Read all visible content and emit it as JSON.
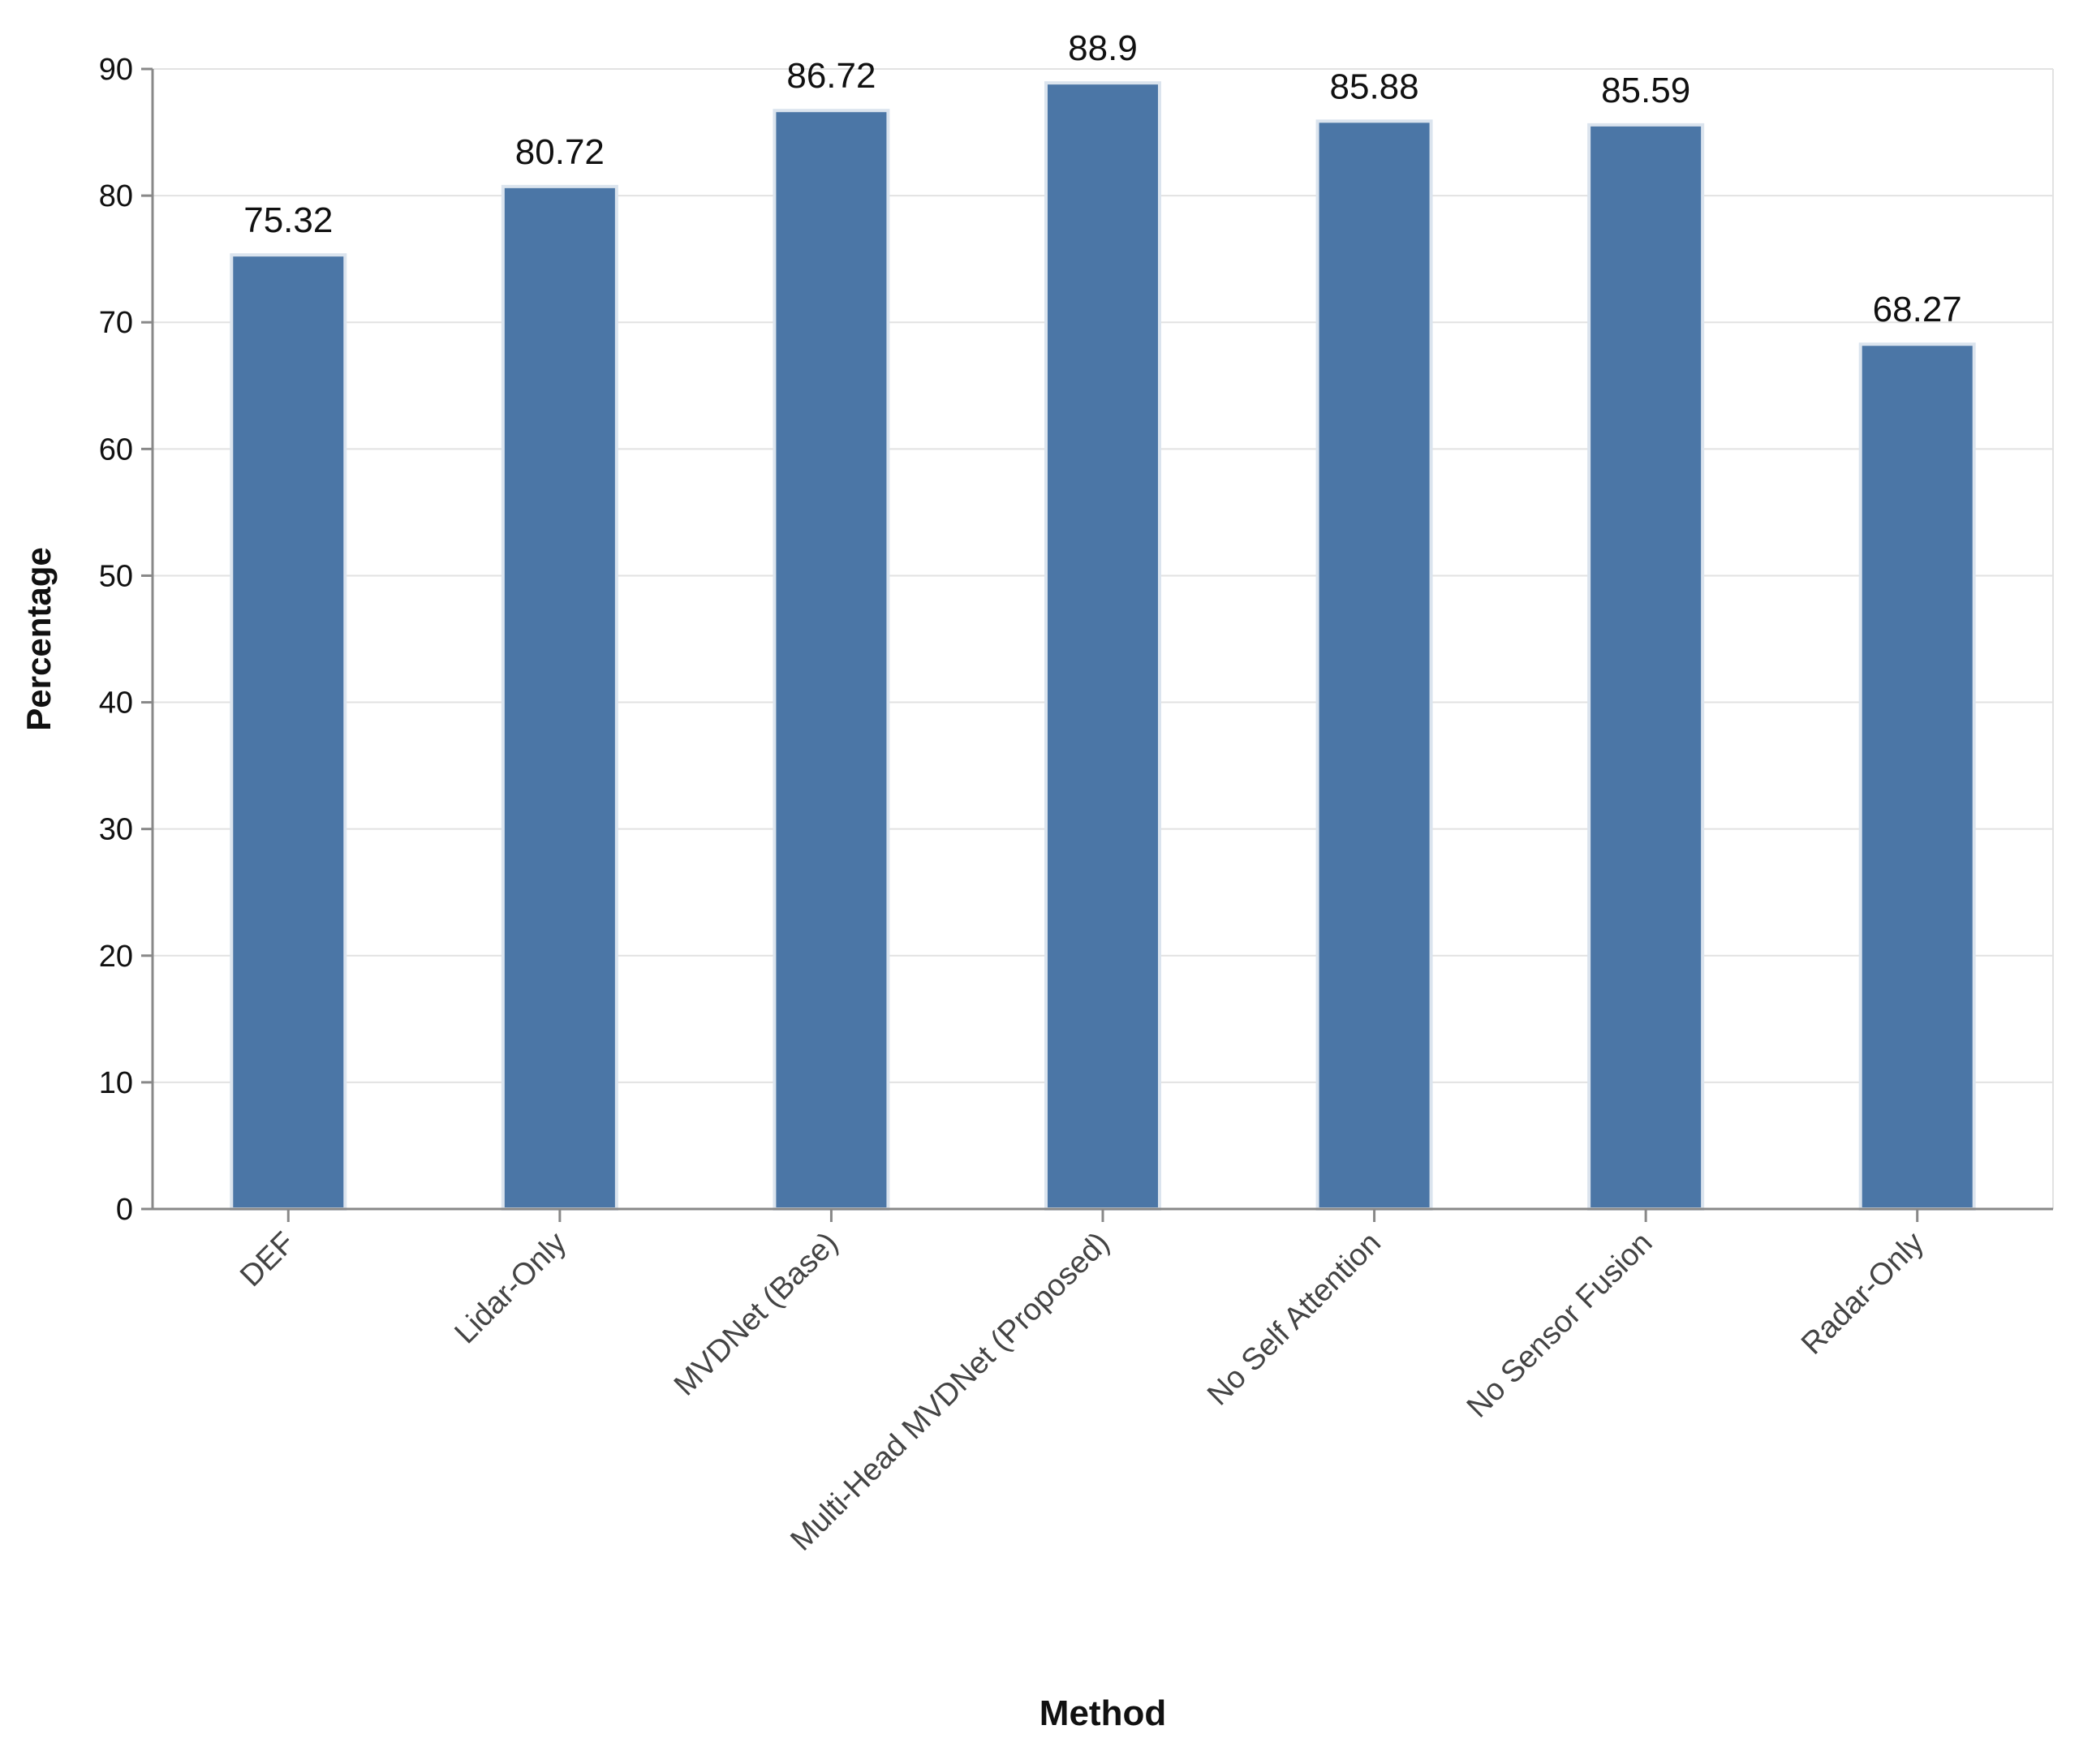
{
  "chart_data": {
    "type": "bar",
    "title": "",
    "xlabel": "Method",
    "ylabel": "Percentage",
    "categories": [
      "DEF",
      "Lidar-Only",
      "MVDNet (Base)",
      "Multi-Head MVDNet (Proposed)",
      "No Self Attention",
      "No Sensor Fusion",
      "Radar-Only"
    ],
    "values": [
      75.32,
      80.72,
      86.72,
      88.9,
      85.88,
      85.59,
      68.27
    ],
    "value_labels": [
      "75.32",
      "80.72",
      "86.72",
      "88.9",
      "85.88",
      "85.59",
      "68.27"
    ],
    "ylim": [
      0,
      90
    ],
    "yticks": [
      0,
      10,
      20,
      30,
      40,
      50,
      60,
      70,
      80,
      90
    ],
    "ytick_labels": [
      "0",
      "10",
      "20",
      "30",
      "40",
      "50",
      "60",
      "70",
      "80",
      "90"
    ],
    "grid": "horizontal",
    "legend": "none",
    "colors": {
      "bar": "#4b76a6",
      "bar_outline": "#dbe4ee",
      "grid": "#e2e2e2",
      "axis": "#888888",
      "text": "#111111"
    }
  }
}
